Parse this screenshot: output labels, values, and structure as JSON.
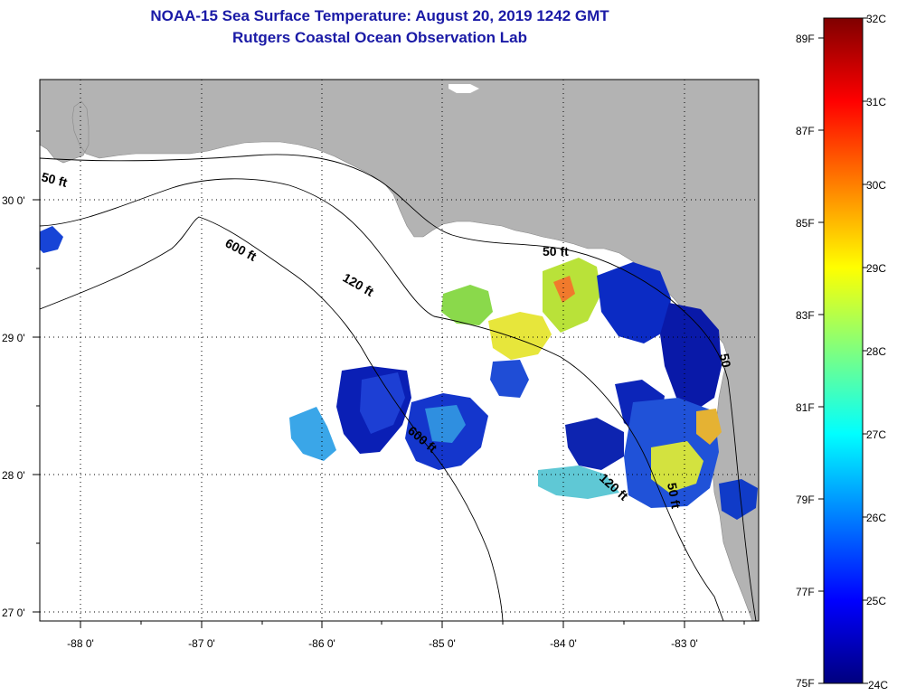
{
  "title": "NOAA-15 Sea Surface Temperature:  August 20, 2019 1242 GMT",
  "subtitle": "Rutgers Coastal Ocean Observation Lab",
  "map": {
    "lon_labels": [
      "-88 0'",
      "-87 0'",
      "-86 0'",
      "-85 0'",
      "-84 0'",
      "-83 0'"
    ],
    "lat_labels": [
      "30 0'",
      "29 0'",
      "28 0'",
      "27 0'"
    ],
    "contours": [
      {
        "label": "50 ft",
        "where": "northwest"
      },
      {
        "label": "600 ft",
        "where": "west"
      },
      {
        "label": "120 ft",
        "where": "center"
      },
      {
        "label": "50 ft",
        "where": "big bend"
      },
      {
        "label": "600 ft",
        "where": "south center"
      },
      {
        "label": "120 ft",
        "where": "southeast"
      },
      {
        "label": "50 ft",
        "where": "southeast coast"
      },
      {
        "label": "50",
        "where": "east coast"
      }
    ],
    "colors": {
      "land": "#b3b3b3",
      "ocean": "#ffffff",
      "title": "#1a1aa6"
    }
  },
  "colorbar": {
    "celsius": [
      "32C",
      "31C",
      "30C",
      "29C",
      "28C",
      "27C",
      "26C",
      "25C",
      "24C"
    ],
    "fahrenheit": [
      "89F",
      "87F",
      "85F",
      "83F",
      "81F",
      "79F",
      "77F",
      "75F"
    ],
    "stops": [
      "#00007f",
      "#0000ff",
      "#007fff",
      "#00ffff",
      "#7fff7f",
      "#ffff00",
      "#ff7f00",
      "#ff0000",
      "#7f0000"
    ]
  }
}
